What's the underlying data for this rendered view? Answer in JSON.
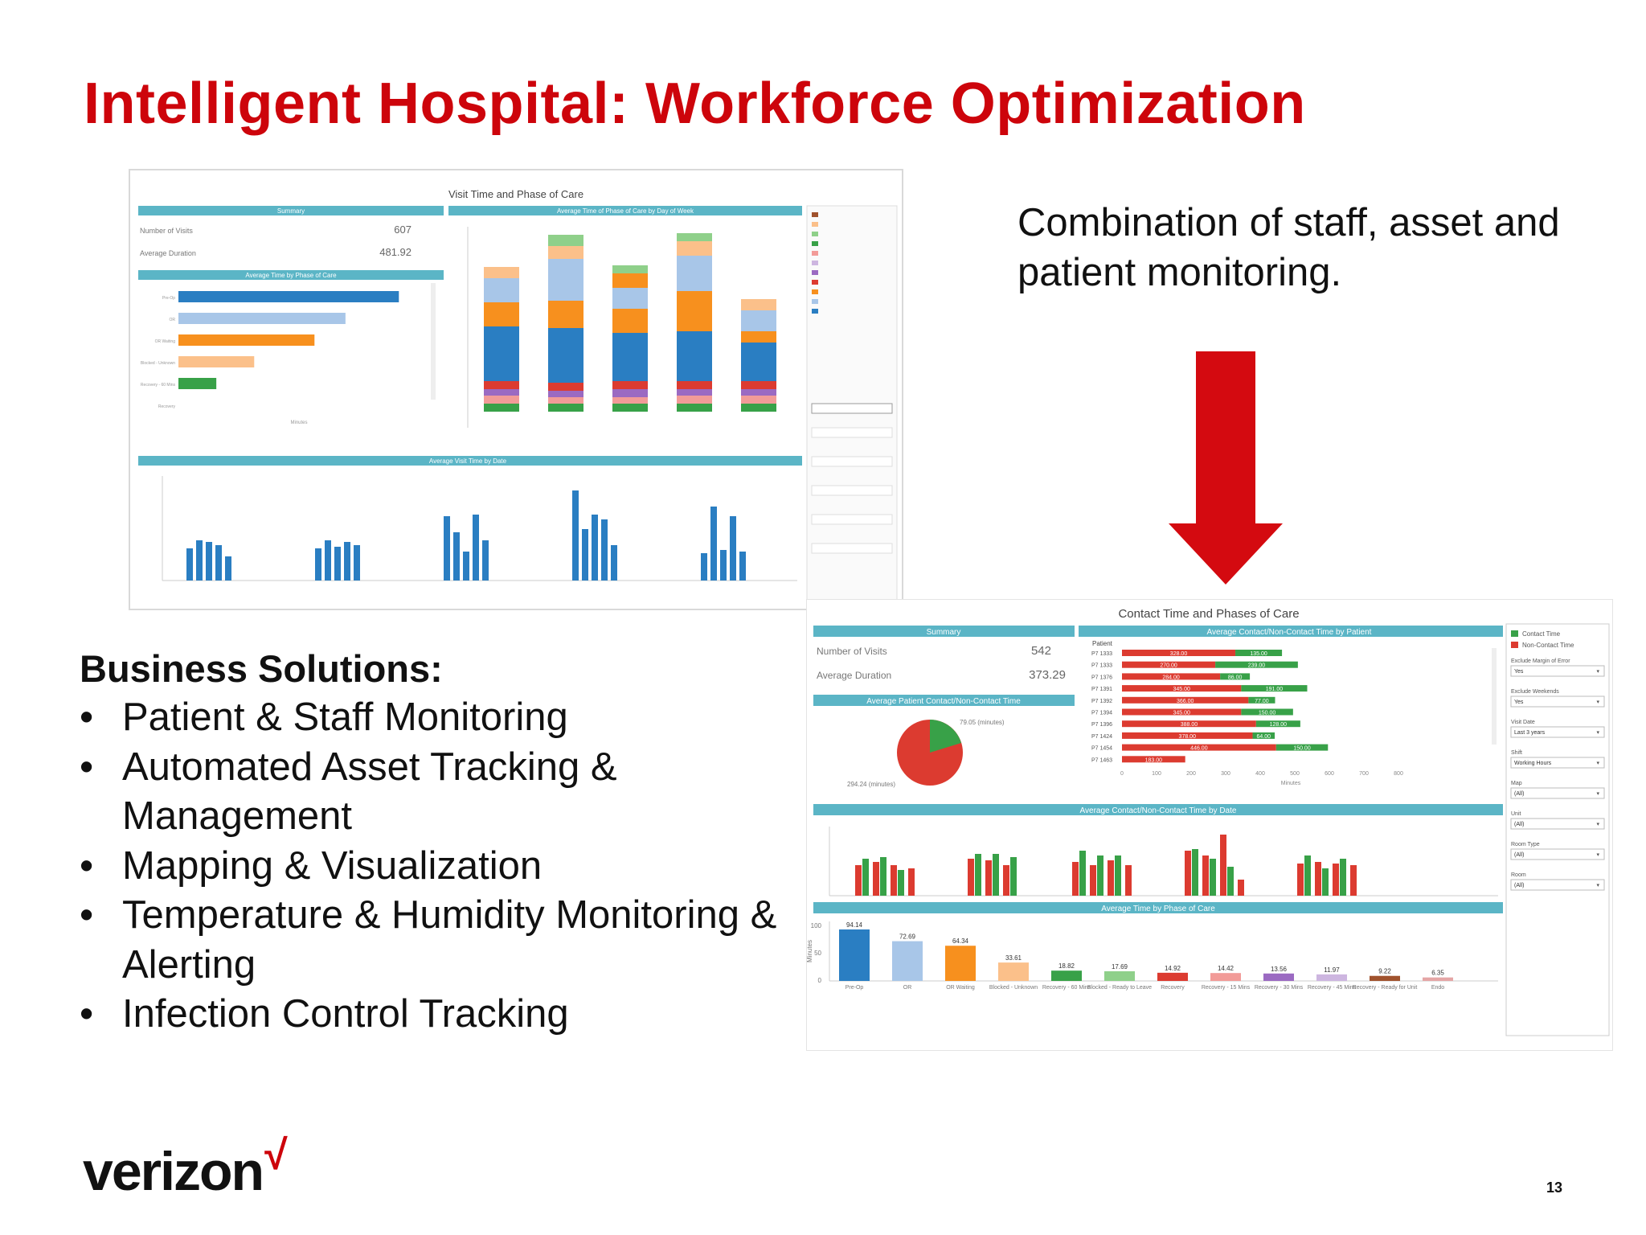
{
  "slide": {
    "title": "Intelligent Hospital:  Workforce Optimization",
    "tagline": "Combination of staff, asset and patient monitoring.",
    "business_heading": "Business Solutions:",
    "business_items": [
      "Patient & Staff Monitoring",
      "Automated Asset Tracking & Management",
      "Mapping & Visualization",
      "Temperature & Humidity Monitoring & Alerting",
      "Infection Control Tracking"
    ],
    "bullet": "•",
    "logo_text": "verizon",
    "logo_mark": "√",
    "page_number": "13"
  },
  "colors": {
    "brand_red": "#cd040b",
    "header_teal": "#5bb5c6",
    "bar_blue": "#2a7ec2",
    "bar_lightblue": "#a8c6e8",
    "bar_orange": "#f7901e",
    "bar_peach": "#fbc08a",
    "bar_green": "#38a148",
    "red_series": "#dc3b30"
  },
  "dashboard1": {
    "title": "Visit Time and Phase of Care",
    "summary_header": "Summary",
    "summary_rows": [
      {
        "label": "Number of Visits",
        "value": "607"
      },
      {
        "label": "Average Duration",
        "value": "481.92"
      }
    ],
    "phase_header": "Average Time by Phase of Care",
    "day_header": "Average Time of Phase of Care by Day of Week",
    "date_header": "Average Visit Time by Date"
  },
  "dashboard2": {
    "title": "Contact Time and Phases of Care",
    "summary_header": "Summary",
    "summary_rows": [
      {
        "label": "Number of Visits",
        "value": "542"
      },
      {
        "label": "Average Duration",
        "value": "373.29"
      }
    ],
    "pie_header": "Average Patient Contact/Non-Contact Time",
    "pie_labels": [
      "79.05 (minutes)",
      "294.24 (minutes)"
    ],
    "patient_header": "Average Contact/Non-Contact Time by Patient",
    "patient_col_label": "Patient",
    "patients": [
      {
        "id": "P7 1333",
        "red": 328.0,
        "green": 135.0
      },
      {
        "id": "P7 1333",
        "red": 270.0,
        "green": 239.0
      },
      {
        "id": "P7 1376",
        "red": 284.0,
        "green": 86.0
      },
      {
        "id": "P7 1391",
        "red": 345.0,
        "green": 191.0
      },
      {
        "id": "P7 1392",
        "red": 366.0,
        "green": 77.0
      },
      {
        "id": "P7 1394",
        "red": 345.0,
        "green": 150.0
      },
      {
        "id": "P7 1396",
        "red": 388.0,
        "green": 128.0
      },
      {
        "id": "P7 1424",
        "red": 378.0,
        "green": 64.0
      },
      {
        "id": "P7 1454",
        "red": 446.0,
        "green": 150.0
      },
      {
        "id": "P7 1463",
        "red": 183.0,
        "green": 0
      }
    ],
    "patient_axis_ticks": [
      "0",
      "100",
      "200",
      "300",
      "400",
      "500",
      "600",
      "700",
      "800"
    ],
    "patient_axis_label": "Minutes",
    "date_header": "Average Contact/Non-Contact Time by Date",
    "phase_header": "Average Time by Phase of Care",
    "legend": [
      {
        "label": "Contact Time",
        "color": "#38a148"
      },
      {
        "label": "Non-Contact Time",
        "color": "#dc3b30"
      }
    ],
    "filters": [
      {
        "label": "Exclude Margin of Error",
        "value": "Yes"
      },
      {
        "label": "Exclude Weekends",
        "value": "Yes"
      },
      {
        "label": "Visit Date",
        "value": "Last 3 years"
      },
      {
        "label": "Shift",
        "value": "Working Hours"
      },
      {
        "label": "Map",
        "value": "(All)"
      },
      {
        "label": "Unit",
        "value": "(All)"
      },
      {
        "label": "Room Type",
        "value": "(All)"
      },
      {
        "label": "Room",
        "value": "(All)"
      }
    ]
  },
  "chart_data": [
    {
      "type": "bar",
      "title": "Average Time by Phase of Care",
      "categories": [
        "Pre-Op",
        "OR",
        "OR Waiting",
        "Blocked - Unknown",
        "Recovery - 60 Mins",
        "Blocked - Ready to Leave",
        "Recovery",
        "Recovery - 15 Mins",
        "Recovery - 30 Mins",
        "Recovery - 45 Mins",
        "Recovery - Ready for Unit",
        "Endo"
      ],
      "values": [
        94.14,
        72.69,
        64.34,
        33.61,
        18.82,
        17.69,
        14.92,
        14.42,
        13.56,
        11.97,
        9.22,
        6.35
      ],
      "colors": [
        "#2a7ec2",
        "#a8c6e8",
        "#f7901e",
        "#fbc08a",
        "#38a148",
        "#8fd08a",
        "#dc3b30",
        "#f29b98",
        "#9b6ac2",
        "#cdb6e0",
        "#a0522d",
        "#e5a6a6"
      ],
      "ylabel": "Minutes",
      "yticks": [
        "0",
        "50",
        "100"
      ],
      "ylim": [
        0,
        100
      ]
    },
    {
      "type": "bar",
      "title": "Average Time by Phase of Care",
      "categories": [
        "Pre-Op",
        "OR",
        "OR Waiting",
        "Blocked - Unknown",
        "Recovery - 60 Mins",
        "Recovery"
      ],
      "values": [
        128.0,
        97.0,
        79.0,
        44.0,
        22.0,
        0
      ],
      "colors": [
        "#2a7ec2",
        "#a8c6e8",
        "#f7901e",
        "#fbc08a",
        "#38a148",
        "#dc3b30"
      ],
      "xlabel": "Minutes",
      "xlim": [
        0,
        140
      ]
    }
  ]
}
